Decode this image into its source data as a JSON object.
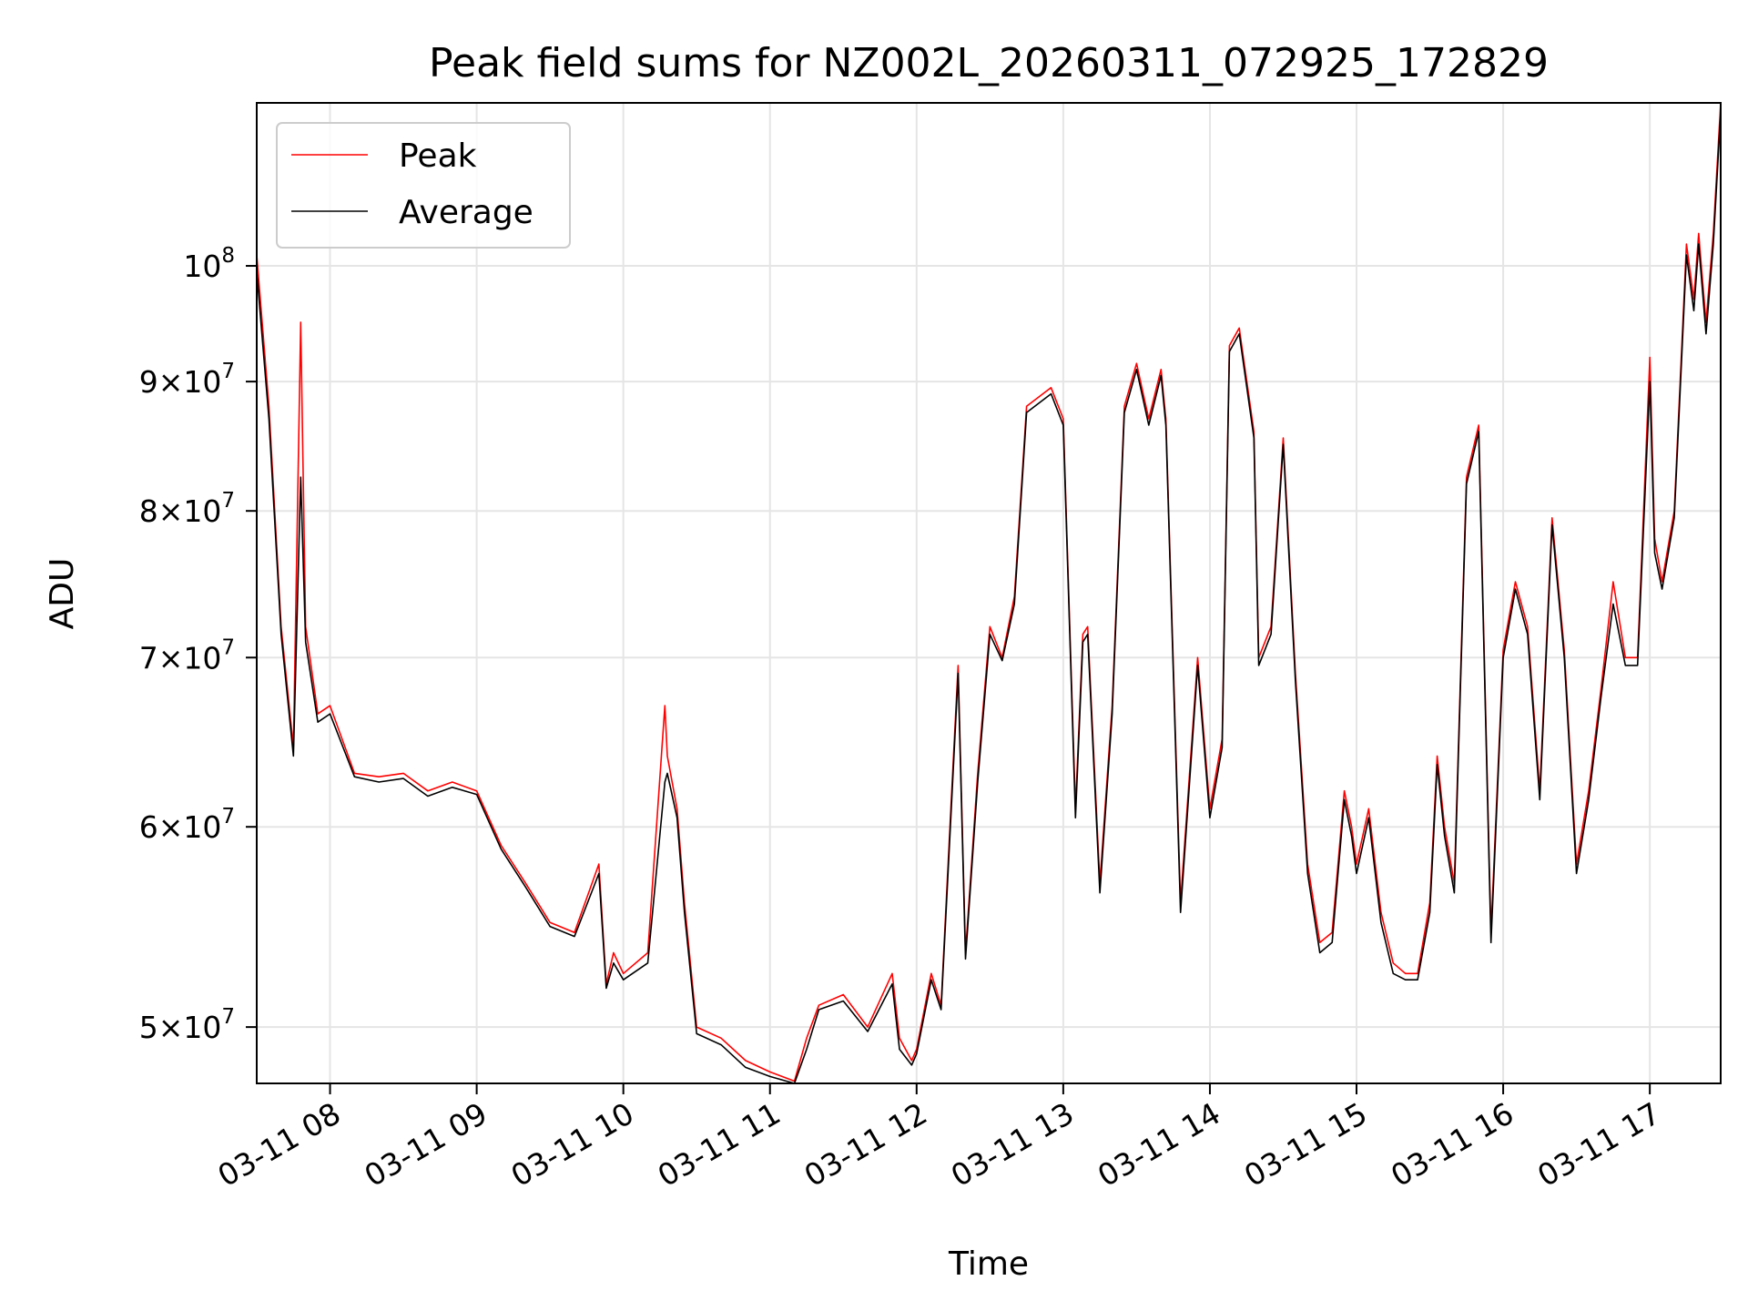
{
  "chart_data": {
    "type": "line",
    "title": "Peak field sums for NZ002L_20260311_072925_172829",
    "xlabel": "Time",
    "ylabel": "ADU",
    "y_scale": "log",
    "grid": true,
    "legend_position": "top-left",
    "xlim": [
      "03-11 07:30",
      "03-11 17:29"
    ],
    "ylim": [
      47500000,
      116000000
    ],
    "x_ticks": [
      "03-11 08",
      "03-11 09",
      "03-11 10",
      "03-11 11",
      "03-11 12",
      "03-11 13",
      "03-11 14",
      "03-11 15",
      "03-11 16",
      "03-11 17"
    ],
    "y_ticks": [
      {
        "value": 50000000,
        "mantissa": "5",
        "exponent": "7"
      },
      {
        "value": 60000000,
        "mantissa": "6",
        "exponent": "7"
      },
      {
        "value": 70000000,
        "mantissa": "7",
        "exponent": "7"
      },
      {
        "value": 80000000,
        "mantissa": "8",
        "exponent": "7"
      },
      {
        "value": 90000000,
        "mantissa": "9",
        "exponent": "7"
      },
      {
        "value": 100000000,
        "mantissa": "",
        "exponent": "8"
      }
    ],
    "x": [
      "03-11 07:30",
      "03-11 07:35",
      "03-11 07:40",
      "03-11 07:45",
      "03-11 07:48",
      "03-11 07:50",
      "03-11 07:55",
      "03-11 08:00",
      "03-11 08:10",
      "03-11 08:20",
      "03-11 08:30",
      "03-11 08:40",
      "03-11 08:50",
      "03-11 09:00",
      "03-11 09:10",
      "03-11 09:20",
      "03-11 09:30",
      "03-11 09:40",
      "03-11 09:50",
      "03-11 09:53",
      "03-11 09:56",
      "03-11 10:00",
      "03-11 10:10",
      "03-11 10:17",
      "03-11 10:18",
      "03-11 10:22",
      "03-11 10:25",
      "03-11 10:30",
      "03-11 10:40",
      "03-11 10:50",
      "03-11 11:00",
      "03-11 11:10",
      "03-11 11:15",
      "03-11 11:20",
      "03-11 11:30",
      "03-11 11:40",
      "03-11 11:50",
      "03-11 11:53",
      "03-11 11:58",
      "03-11 12:00",
      "03-11 12:06",
      "03-11 12:10",
      "03-11 12:14",
      "03-11 12:17",
      "03-11 12:20",
      "03-11 12:25",
      "03-11 12:30",
      "03-11 12:35",
      "03-11 12:40",
      "03-11 12:45",
      "03-11 12:55",
      "03-11 13:00",
      "03-11 13:05",
      "03-11 13:08",
      "03-11 13:10",
      "03-11 13:15",
      "03-11 13:20",
      "03-11 13:25",
      "03-11 13:30",
      "03-11 13:35",
      "03-11 13:40",
      "03-11 13:42",
      "03-11 13:48",
      "03-11 13:55",
      "03-11 14:00",
      "03-11 14:05",
      "03-11 14:08",
      "03-11 14:12",
      "03-11 14:18",
      "03-11 14:20",
      "03-11 14:25",
      "03-11 14:30",
      "03-11 14:35",
      "03-11 14:40",
      "03-11 14:45",
      "03-11 14:50",
      "03-11 14:55",
      "03-11 14:58",
      "03-11 15:00",
      "03-11 15:05",
      "03-11 15:10",
      "03-11 15:15",
      "03-11 15:20",
      "03-11 15:25",
      "03-11 15:30",
      "03-11 15:33",
      "03-11 15:36",
      "03-11 15:40",
      "03-11 15:45",
      "03-11 15:50",
      "03-11 15:55",
      "03-11 16:00",
      "03-11 16:05",
      "03-11 16:10",
      "03-11 16:15",
      "03-11 16:20",
      "03-11 16:25",
      "03-11 16:30",
      "03-11 16:35",
      "03-11 16:40",
      "03-11 16:45",
      "03-11 16:50",
      "03-11 16:55",
      "03-11 17:00",
      "03-11 17:02",
      "03-11 17:05",
      "03-11 17:10",
      "03-11 17:15",
      "03-11 17:18",
      "03-11 17:20",
      "03-11 17:23",
      "03-11 17:26",
      "03-11 17:29"
    ],
    "series": [
      {
        "name": "Peak",
        "color": "#ff0000",
        "values": [
          101000000,
          88000000,
          72000000,
          64500000,
          95000000,
          72000000,
          66500000,
          67000000,
          63000000,
          62800000,
          63000000,
          62000000,
          62500000,
          62000000,
          59000000,
          57000000,
          55000000,
          54500000,
          58000000,
          52000000,
          53500000,
          52500000,
          53500000,
          67000000,
          64000000,
          61000000,
          56000000,
          50000000,
          49500000,
          48500000,
          48000000,
          47600000,
          49500000,
          51000000,
          51500000,
          50000000,
          52500000,
          49500000,
          48500000,
          49000000,
          52500000,
          51000000,
          61000000,
          69500000,
          53500000,
          63000000,
          72000000,
          70000000,
          74000000,
          88000000,
          89500000,
          87000000,
          61000000,
          71500000,
          72000000,
          57000000,
          67000000,
          88000000,
          91500000,
          87000000,
          91000000,
          87000000,
          56000000,
          70000000,
          61000000,
          65000000,
          93000000,
          94500000,
          86000000,
          70000000,
          72000000,
          85500000,
          69000000,
          58000000,
          54000000,
          54500000,
          62000000,
          60000000,
          58000000,
          61000000,
          55500000,
          53000000,
          52500000,
          52500000,
          56000000,
          64000000,
          60000000,
          57000000,
          82500000,
          86500000,
          54500000,
          70500000,
          75000000,
          72000000,
          62000000,
          79500000,
          70500000,
          58000000,
          62000000,
          68000000,
          75000000,
          70000000,
          70000000,
          92000000,
          78000000,
          75000000,
          80000000,
          102000000,
          97000000,
          103000000,
          95000000,
          103000000,
          116000000
        ]
      },
      {
        "name": "Average",
        "color": "#000000",
        "values": [
          99500000,
          87000000,
          71500000,
          64000000,
          82500000,
          71000000,
          66000000,
          66500000,
          62800000,
          62500000,
          62700000,
          61700000,
          62200000,
          61800000,
          58800000,
          56800000,
          54800000,
          54300000,
          57500000,
          51800000,
          53000000,
          52200000,
          53000000,
          62500000,
          63000000,
          60500000,
          55500000,
          49700000,
          49200000,
          48200000,
          47800000,
          47500000,
          49000000,
          50800000,
          51200000,
          49800000,
          52000000,
          49000000,
          48300000,
          48800000,
          52200000,
          50800000,
          60500000,
          69000000,
          53200000,
          62500000,
          71500000,
          69800000,
          73500000,
          87500000,
          89000000,
          86500000,
          60500000,
          71000000,
          71500000,
          56500000,
          66500000,
          87500000,
          91000000,
          86500000,
          90500000,
          86500000,
          55500000,
          69500000,
          60500000,
          64500000,
          92500000,
          94000000,
          85500000,
          69500000,
          71500000,
          85000000,
          68500000,
          57500000,
          53500000,
          54000000,
          61500000,
          59500000,
          57500000,
          60500000,
          55000000,
          52500000,
          52200000,
          52200000,
          55500000,
          63500000,
          59500000,
          56500000,
          82000000,
          86000000,
          54000000,
          70000000,
          74500000,
          71500000,
          61500000,
          79000000,
          70000000,
          57500000,
          61500000,
          67500000,
          73500000,
          69500000,
          69500000,
          90000000,
          77000000,
          74500000,
          79500000,
          101000000,
          96000000,
          102000000,
          94000000,
          102000000,
          115000000
        ]
      }
    ]
  }
}
